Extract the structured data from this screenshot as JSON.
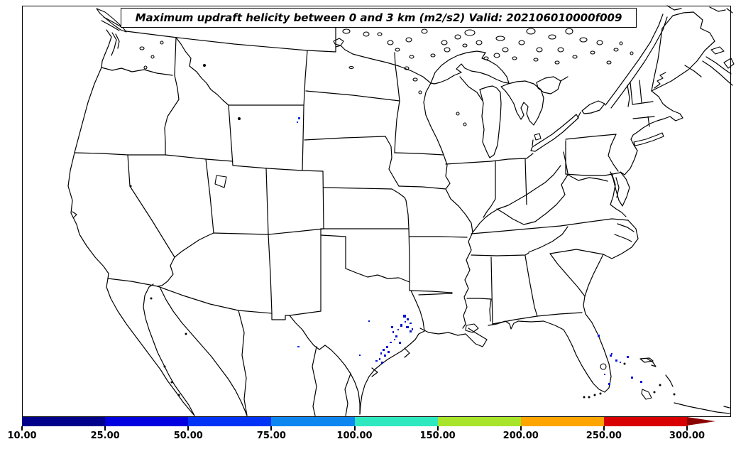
{
  "title": {
    "text": "Maximum updraft helicity between 0 and 3 km (m2/s2) Valid: 202106010000f009"
  },
  "colorbar": {
    "tick_labels": [
      "10.00",
      "25.00",
      "50.00",
      "75.00",
      "100.00",
      "150.00",
      "200.00",
      "250.00",
      "300.00"
    ],
    "segment_colors": [
      "#00008b",
      "#0000e0",
      "#0033f5",
      "#0e86f0",
      "#2ee8c0",
      "#a8e42a",
      "#ffa500",
      "#d80000"
    ],
    "overflow_arrow_color": "#8b0000"
  },
  "chart_data": {
    "type": "heatmap",
    "title": "Maximum updraft helicity between 0 and 3 km (m2/s2)",
    "valid_time": "202106010000f009",
    "units": "m2/s2",
    "region": "Continental United States",
    "colorbar_levels": [
      10,
      25,
      50,
      75,
      100,
      150,
      200,
      250,
      300
    ],
    "colorbar_colors": [
      "#00008b",
      "#0000e0",
      "#0033f5",
      "#0e86f0",
      "#2ee8c0",
      "#a8e42a",
      "#ffa500",
      "#d80000"
    ],
    "legend_position": "bottom",
    "data_clusters": [
      {
        "name": "southeast-texas-cluster",
        "approx_value_range": [
          10,
          50
        ],
        "color": "#0614cf",
        "points": [
          [
            568,
            443,
            4,
            4
          ],
          [
            573,
            448,
            3,
            3
          ],
          [
            564,
            456,
            3,
            4
          ],
          [
            572,
            459,
            4,
            3
          ],
          [
            577,
            465,
            3,
            3
          ],
          [
            551,
            459,
            3,
            3
          ],
          [
            553,
            466,
            2,
            3
          ],
          [
            557,
            472,
            3,
            3
          ],
          [
            562,
            481,
            3,
            3
          ],
          [
            549,
            481,
            3,
            2
          ],
          [
            544,
            487,
            3,
            3
          ],
          [
            539,
            491,
            3,
            3
          ],
          [
            536,
            496,
            2,
            3
          ],
          [
            541,
            499,
            3,
            3
          ],
          [
            534,
            504,
            2,
            3
          ],
          [
            529,
            507,
            3,
            2
          ],
          [
            537,
            509,
            3,
            3
          ],
          [
            546,
            494,
            3,
            3
          ],
          [
            519,
            451,
            2,
            2
          ],
          [
            506,
            499,
            2,
            2
          ],
          [
            577,
            454,
            3,
            2
          ],
          [
            580,
            462,
            2,
            3
          ],
          [
            570,
            452,
            2,
            2
          ],
          [
            560,
            463,
            2,
            2
          ],
          [
            555,
            477,
            2,
            2
          ]
        ]
      },
      {
        "name": "florida-bahamas-cluster",
        "approx_value_range": [
          10,
          50
        ],
        "color": "#0a18dd",
        "points": [
          [
            842,
            471,
            3,
            3
          ],
          [
            859,
            499,
            3,
            3
          ],
          [
            867,
            506,
            3,
            3
          ],
          [
            883,
            501,
            3,
            3
          ],
          [
            889,
            530,
            3,
            3
          ],
          [
            902,
            536,
            3,
            3
          ],
          [
            857,
            539,
            3,
            3
          ],
          [
            851,
            526,
            2,
            2
          ],
          [
            861,
            497,
            2,
            2
          ],
          [
            873,
            509,
            2,
            2
          ]
        ]
      },
      {
        "name": "eastern-montana-speck",
        "approx_value_range": [
          10,
          50
        ],
        "color": "#1530e0",
        "points": [
          [
            420,
            165,
            3,
            3
          ],
          [
            418,
            171,
            2,
            2
          ]
        ]
      },
      {
        "name": "rio-grande-speck",
        "approx_value_range": [
          10,
          50
        ],
        "color": "#1530e0",
        "points": [
          [
            419,
            487,
            3,
            2
          ]
        ]
      }
    ]
  }
}
